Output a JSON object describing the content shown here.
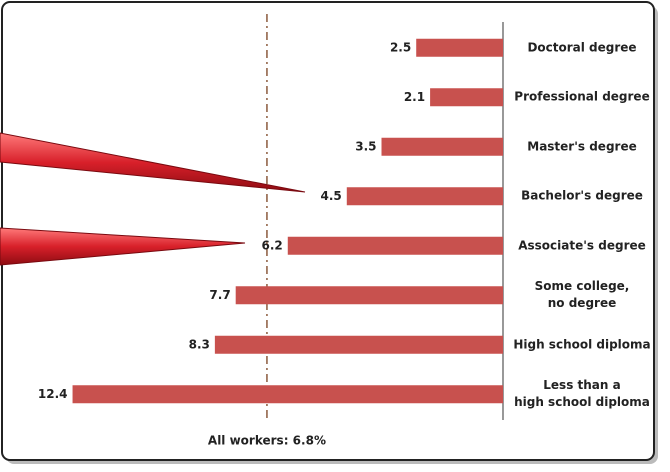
{
  "chart_data": {
    "type": "bar",
    "orientation": "horizontal",
    "categories": [
      "Doctoral degree",
      "Professional degree",
      "Master's degree",
      "Bachelor's degree",
      "Associate's degree",
      "Some college,\nno degree",
      "High school diploma",
      "Less than a\nhigh school diploma"
    ],
    "values": [
      2.5,
      2.1,
      3.5,
      4.5,
      6.2,
      7.7,
      8.3,
      12.4
    ],
    "color": "#c8514e",
    "xlim": [
      0,
      14
    ],
    "reference": {
      "label": "All workers: 6.8%",
      "value": 6.8,
      "color": "#8b5a3c"
    }
  }
}
